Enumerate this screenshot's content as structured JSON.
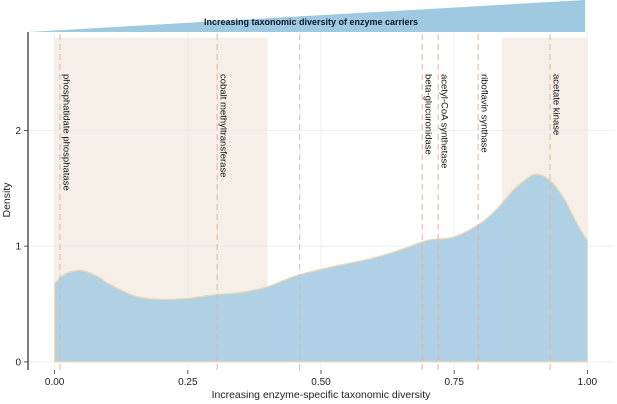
{
  "banner": {
    "text": "Increasing taxonomic diversity of enzyme carriers",
    "color": "#9fc9e0"
  },
  "chart_data": {
    "type": "area",
    "xlabel": "Increasing enzyme-specific taxonomic diversity",
    "ylabel": "Density",
    "xlim": [
      -0.05,
      1.05
    ],
    "ylim": [
      -0.07,
      2.85
    ],
    "x_ticks": [
      {
        "value": 0,
        "label": "0.00"
      },
      {
        "value": 0.25,
        "label": "0.25"
      },
      {
        "value": 0.5,
        "label": "0.50"
      },
      {
        "value": 0.75,
        "label": "0.75"
      },
      {
        "value": 1,
        "label": "1.00"
      }
    ],
    "y_ticks": [
      {
        "value": 0,
        "label": "0"
      },
      {
        "value": 1,
        "label": "1"
      },
      {
        "value": 2,
        "label": "2"
      }
    ],
    "grid": true,
    "fill_color": "#a9cde3",
    "outline_color": "#ead9b8",
    "curve": {
      "x": [
        0,
        0.02,
        0.05,
        0.08,
        0.1,
        0.15,
        0.2,
        0.25,
        0.3,
        0.35,
        0.4,
        0.45,
        0.5,
        0.55,
        0.6,
        0.65,
        0.7,
        0.75,
        0.8,
        0.83,
        0.86,
        0.88,
        0.9,
        0.92,
        0.94,
        0.96,
        0.98,
        1.0
      ],
      "y": [
        0.68,
        0.76,
        0.79,
        0.74,
        0.68,
        0.57,
        0.54,
        0.55,
        0.58,
        0.6,
        0.65,
        0.74,
        0.8,
        0.85,
        0.9,
        0.97,
        1.05,
        1.08,
        1.2,
        1.32,
        1.48,
        1.56,
        1.62,
        1.6,
        1.52,
        1.38,
        1.2,
        1.05
      ]
    },
    "shaded_regions": [
      {
        "x0": 0,
        "x1": 0.4,
        "color": "#f6efe7"
      },
      {
        "x0": 0.84,
        "x1": 1.0,
        "color": "#f6efe7"
      }
    ],
    "region_top": 2.8,
    "boundary_lines": [
      0.46
    ],
    "enzymes": [
      {
        "name": "phosphatidate phosphatase",
        "x": 0.01
      },
      {
        "name": "cobalt methyltransferase",
        "x": 0.305
      },
      {
        "name": "beta-glucuronidase",
        "x": 0.69
      },
      {
        "name": "acetyl-CoA synthetase",
        "x": 0.72
      },
      {
        "name": "riboflavin synthase",
        "x": 0.795
      },
      {
        "name": "acetate kinase",
        "x": 0.93
      }
    ],
    "dashed_line_color": "#d9b6a6"
  }
}
